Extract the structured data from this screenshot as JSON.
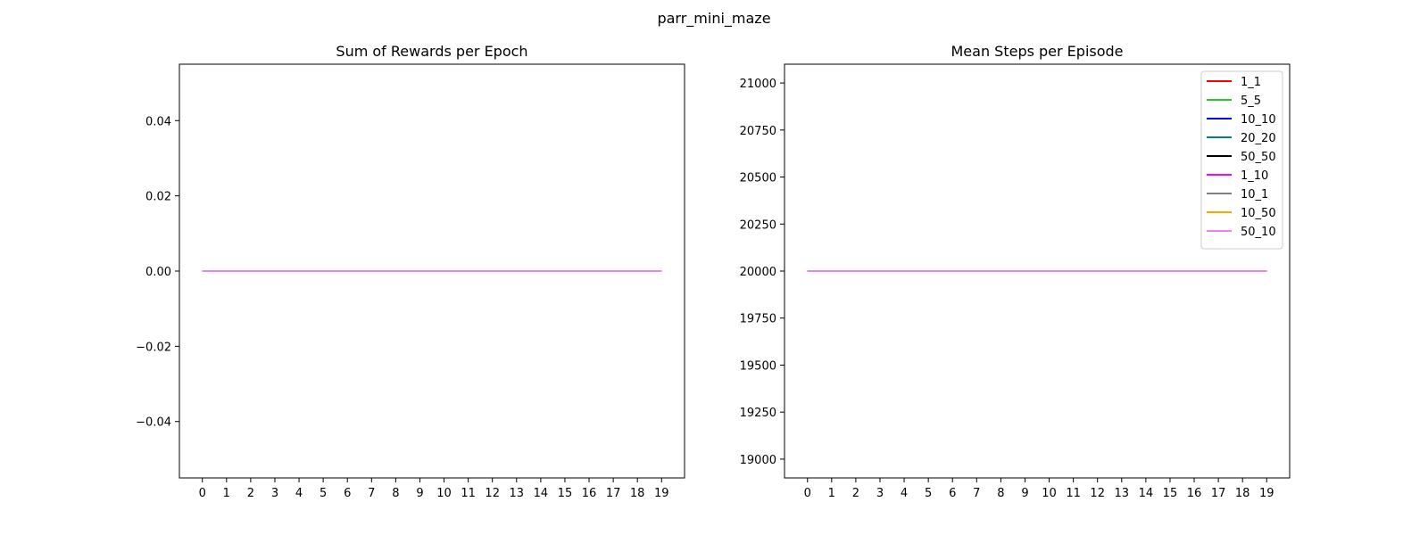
{
  "figure": {
    "title": "parr_mini_maze"
  },
  "chart_data": [
    {
      "type": "line",
      "title": "Sum of Rewards per Epoch",
      "xlabel": "",
      "ylabel": "",
      "x": [
        0,
        1,
        2,
        3,
        4,
        5,
        6,
        7,
        8,
        9,
        10,
        11,
        12,
        13,
        14,
        15,
        16,
        17,
        18,
        19
      ],
      "xticks": [
        "0",
        "1",
        "2",
        "3",
        "4",
        "5",
        "6",
        "7",
        "8",
        "9",
        "10",
        "11",
        "12",
        "13",
        "14",
        "15",
        "16",
        "17",
        "18",
        "19"
      ],
      "xlim": [
        -0.95,
        19.95
      ],
      "ylim": [
        -0.055,
        0.055
      ],
      "yticks": [
        -0.04,
        -0.02,
        0.0,
        0.02,
        0.04
      ],
      "ytick_labels": [
        "−0.04",
        "−0.02",
        "0.00",
        "0.02",
        "0.04"
      ],
      "grid": false,
      "legend": null,
      "series": [
        {
          "color": "#ff0000",
          "values": [
            0,
            0,
            0,
            0,
            0,
            0,
            0,
            0,
            0,
            0,
            0,
            0,
            0,
            0,
            0,
            0,
            0,
            0,
            0,
            0
          ]
        },
        {
          "color": "#22cc22",
          "values": [
            0,
            0,
            0,
            0,
            0,
            0,
            0,
            0,
            0,
            0,
            0,
            0,
            0,
            0,
            0,
            0,
            0,
            0,
            0,
            0
          ]
        },
        {
          "color": "#0000ff",
          "values": [
            0,
            0,
            0,
            0,
            0,
            0,
            0,
            0,
            0,
            0,
            0,
            0,
            0,
            0,
            0,
            0,
            0,
            0,
            0,
            0
          ]
        },
        {
          "color": "#008080",
          "values": [
            0,
            0,
            0,
            0,
            0,
            0,
            0,
            0,
            0,
            0,
            0,
            0,
            0,
            0,
            0,
            0,
            0,
            0,
            0,
            0
          ]
        },
        {
          "color": "#000000",
          "values": [
            0,
            0,
            0,
            0,
            0,
            0,
            0,
            0,
            0,
            0,
            0,
            0,
            0,
            0,
            0,
            0,
            0,
            0,
            0,
            0
          ]
        },
        {
          "color": "#ff00ff",
          "values": [
            0,
            0,
            0,
            0,
            0,
            0,
            0,
            0,
            0,
            0,
            0,
            0,
            0,
            0,
            0,
            0,
            0,
            0,
            0,
            0
          ]
        },
        {
          "color": "#808080",
          "values": [
            0,
            0,
            0,
            0,
            0,
            0,
            0,
            0,
            0,
            0,
            0,
            0,
            0,
            0,
            0,
            0,
            0,
            0,
            0,
            0
          ]
        },
        {
          "color": "#ffa500",
          "values": [
            0,
            0,
            0,
            0,
            0,
            0,
            0,
            0,
            0,
            0,
            0,
            0,
            0,
            0,
            0,
            0,
            0,
            0,
            0,
            0
          ]
        },
        {
          "color": "#ee82ee",
          "values": [
            0,
            0,
            0,
            0,
            0,
            0,
            0,
            0,
            0,
            0,
            0,
            0,
            0,
            0,
            0,
            0,
            0,
            0,
            0,
            0
          ]
        }
      ]
    },
    {
      "type": "line",
      "title": "Mean Steps per Episode",
      "xlabel": "",
      "ylabel": "",
      "x": [
        0,
        1,
        2,
        3,
        4,
        5,
        6,
        7,
        8,
        9,
        10,
        11,
        12,
        13,
        14,
        15,
        16,
        17,
        18,
        19
      ],
      "xticks": [
        "0",
        "1",
        "2",
        "3",
        "4",
        "5",
        "6",
        "7",
        "8",
        "9",
        "10",
        "11",
        "12",
        "13",
        "14",
        "15",
        "16",
        "17",
        "18",
        "19"
      ],
      "xlim": [
        -0.95,
        19.95
      ],
      "ylim": [
        18900,
        21100
      ],
      "yticks": [
        19000,
        19250,
        19500,
        19750,
        20000,
        20250,
        20500,
        20750,
        21000
      ],
      "ytick_labels": [
        "19000",
        "19250",
        "19500",
        "19750",
        "20000",
        "20250",
        "20500",
        "20750",
        "21000"
      ],
      "grid": false,
      "legend": "top-right",
      "series": [
        {
          "name": "1_1",
          "color": "#ff0000",
          "values": [
            20000,
            20000,
            20000,
            20000,
            20000,
            20000,
            20000,
            20000,
            20000,
            20000,
            20000,
            20000,
            20000,
            20000,
            20000,
            20000,
            20000,
            20000,
            20000,
            20000
          ]
        },
        {
          "name": "5_5",
          "color": "#22cc22",
          "values": [
            20000,
            20000,
            20000,
            20000,
            20000,
            20000,
            20000,
            20000,
            20000,
            20000,
            20000,
            20000,
            20000,
            20000,
            20000,
            20000,
            20000,
            20000,
            20000,
            20000
          ]
        },
        {
          "name": "10_10",
          "color": "#0000ff",
          "values": [
            20000,
            20000,
            20000,
            20000,
            20000,
            20000,
            20000,
            20000,
            20000,
            20000,
            20000,
            20000,
            20000,
            20000,
            20000,
            20000,
            20000,
            20000,
            20000,
            20000
          ]
        },
        {
          "name": "20_20",
          "color": "#008080",
          "values": [
            20000,
            20000,
            20000,
            20000,
            20000,
            20000,
            20000,
            20000,
            20000,
            20000,
            20000,
            20000,
            20000,
            20000,
            20000,
            20000,
            20000,
            20000,
            20000,
            20000
          ]
        },
        {
          "name": "50_50",
          "color": "#000000",
          "values": [
            20000,
            20000,
            20000,
            20000,
            20000,
            20000,
            20000,
            20000,
            20000,
            20000,
            20000,
            20000,
            20000,
            20000,
            20000,
            20000,
            20000,
            20000,
            20000,
            20000
          ]
        },
        {
          "name": "1_10",
          "color": "#ff00ff",
          "values": [
            20000,
            20000,
            20000,
            20000,
            20000,
            20000,
            20000,
            20000,
            20000,
            20000,
            20000,
            20000,
            20000,
            20000,
            20000,
            20000,
            20000,
            20000,
            20000,
            20000
          ]
        },
        {
          "name": "10_1",
          "color": "#808080",
          "values": [
            20000,
            20000,
            20000,
            20000,
            20000,
            20000,
            20000,
            20000,
            20000,
            20000,
            20000,
            20000,
            20000,
            20000,
            20000,
            20000,
            20000,
            20000,
            20000,
            20000
          ]
        },
        {
          "name": "10_50",
          "color": "#ffa500",
          "values": [
            20000,
            20000,
            20000,
            20000,
            20000,
            20000,
            20000,
            20000,
            20000,
            20000,
            20000,
            20000,
            20000,
            20000,
            20000,
            20000,
            20000,
            20000,
            20000,
            20000
          ]
        },
        {
          "name": "50_10",
          "color": "#ee82ee",
          "values": [
            20000,
            20000,
            20000,
            20000,
            20000,
            20000,
            20000,
            20000,
            20000,
            20000,
            20000,
            20000,
            20000,
            20000,
            20000,
            20000,
            20000,
            20000,
            20000,
            20000
          ]
        }
      ]
    }
  ]
}
